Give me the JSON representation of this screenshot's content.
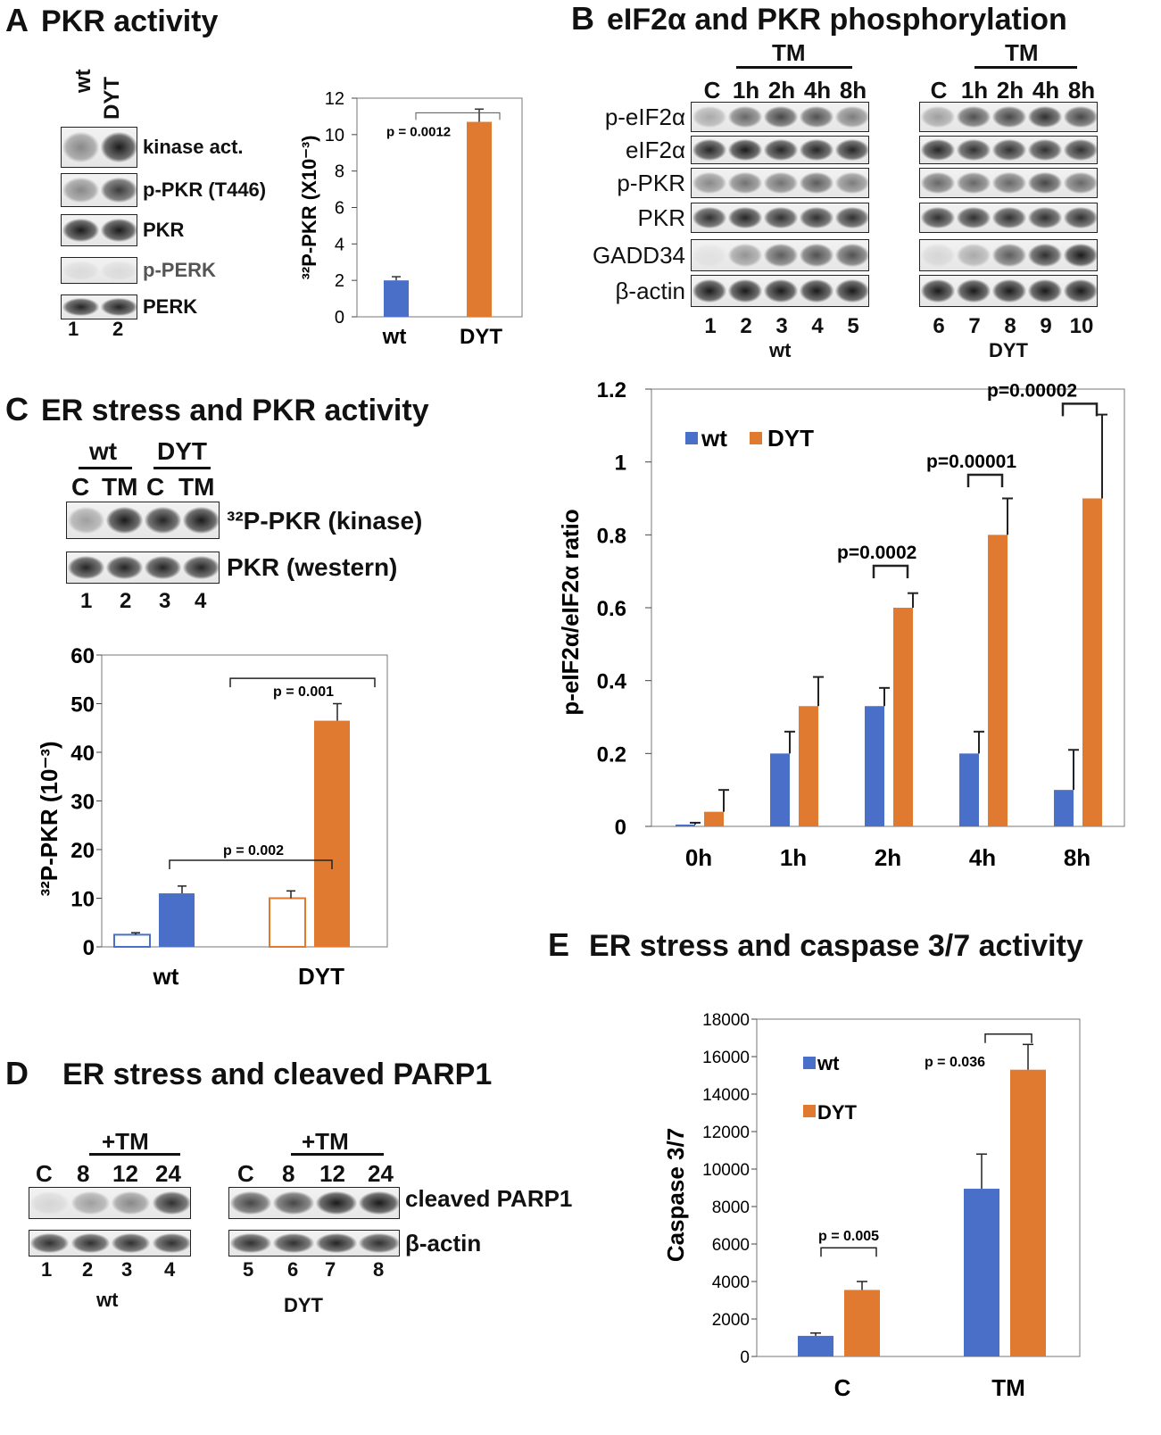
{
  "panelA": {
    "letter": "A",
    "title": "PKR activity",
    "lanes": [
      "wt",
      "DYT"
    ],
    "rows": [
      "kinase act.",
      "p-PKR (T446)",
      "PKR",
      "p-PERK",
      "PERK"
    ],
    "lane_numbers": [
      "1",
      "2"
    ],
    "band_intensity": [
      [
        0.45,
        0.95
      ],
      [
        0.45,
        0.8
      ],
      [
        0.95,
        0.95
      ],
      [
        0.08,
        0.08
      ],
      [
        0.9,
        0.9
      ]
    ]
  },
  "panelB": {
    "letter": "B",
    "title": "eIF2α and PKR phosphorylation",
    "treatment_label": "TM",
    "time_labels": [
      "C",
      "1h",
      "2h",
      "4h",
      "8h"
    ],
    "rows": [
      "p-eIF2α",
      "eIF2α",
      "p-PKR",
      "PKR",
      "GADD34",
      "β-actin"
    ],
    "wt": {
      "lane_numbers": [
        "1",
        "2",
        "3",
        "4",
        "5"
      ],
      "genotype": "wt",
      "band_intensity": [
        [
          0.3,
          0.6,
          0.75,
          0.7,
          0.5
        ],
        [
          0.9,
          0.95,
          0.9,
          0.9,
          0.9
        ],
        [
          0.45,
          0.55,
          0.55,
          0.65,
          0.5
        ],
        [
          0.85,
          0.9,
          0.85,
          0.85,
          0.85
        ],
        [
          0.05,
          0.4,
          0.65,
          0.7,
          0.7
        ],
        [
          0.95,
          0.95,
          0.95,
          0.95,
          0.95
        ]
      ]
    },
    "dyt": {
      "lane_numbers": [
        "6",
        "7",
        "8",
        "9",
        "10"
      ],
      "genotype": "DYT",
      "band_intensity": [
        [
          0.35,
          0.7,
          0.75,
          0.85,
          0.75
        ],
        [
          0.9,
          0.85,
          0.85,
          0.85,
          0.85
        ],
        [
          0.6,
          0.6,
          0.6,
          0.75,
          0.6
        ],
        [
          0.85,
          0.85,
          0.85,
          0.85,
          0.85
        ],
        [
          0.1,
          0.3,
          0.65,
          0.85,
          0.95
        ],
        [
          0.95,
          0.95,
          0.95,
          0.95,
          0.95
        ]
      ]
    }
  },
  "panelC": {
    "letter": "C",
    "title": "ER stress and PKR activity",
    "groups": [
      "wt",
      "DYT"
    ],
    "lane_labels": [
      "C",
      "TM",
      "C",
      "TM"
    ],
    "rows": [
      "³²P-PKR (kinase)",
      "PKR (western)"
    ],
    "lane_numbers": [
      "1",
      "2",
      "3",
      "4"
    ],
    "band_intensity": [
      [
        0.35,
        0.95,
        0.9,
        0.95
      ],
      [
        0.9,
        0.9,
        0.9,
        0.9
      ]
    ]
  },
  "panelD": {
    "letter": "D",
    "title": "ER stress and cleaved PARP1",
    "treatment_label": "+TM",
    "time_labels": [
      "C",
      "8",
      "12",
      "24"
    ],
    "rows": [
      "cleaved PARP1",
      "β-actin"
    ],
    "wt": {
      "lane_numbers": [
        "1",
        "2",
        "3",
        "4"
      ],
      "genotype": "wt",
      "band_intensity": [
        [
          0.1,
          0.35,
          0.45,
          0.85
        ],
        [
          0.85,
          0.85,
          0.85,
          0.85
        ]
      ]
    },
    "dyt": {
      "lane_numbers": [
        "5",
        "6",
        "7",
        "8"
      ],
      "genotype": "DYT",
      "band_intensity": [
        [
          0.75,
          0.75,
          0.95,
          0.95
        ],
        [
          0.85,
          0.85,
          0.9,
          0.85
        ]
      ]
    }
  },
  "panelE": {
    "letter": "E",
    "title": "ER stress and caspase 3/7 activity"
  },
  "colors": {
    "wt": "#4a6fc9",
    "dyt": "#e07a30"
  },
  "chart_data": [
    {
      "id": "A",
      "type": "bar",
      "categories": [
        "wt",
        "DYT"
      ],
      "values": [
        2.0,
        10.7
      ],
      "errors": [
        0.2,
        0.7
      ],
      "ylabel": "³²P-PKR (X10⁻³)",
      "ylim": [
        0,
        12
      ],
      "yticks": [
        "0",
        "2",
        "4",
        "6",
        "8",
        "10",
        "12"
      ],
      "annotations": [
        {
          "text": "p = 0.0012",
          "between": [
            0,
            1
          ]
        }
      ]
    },
    {
      "id": "B",
      "type": "bar",
      "categories": [
        "0h",
        "1h",
        "2h",
        "4h",
        "8h"
      ],
      "series": [
        {
          "name": "wt",
          "values": [
            0.005,
            0.2,
            0.33,
            0.2,
            0.1
          ],
          "errors": [
            0.005,
            0.06,
            0.05,
            0.06,
            0.11
          ]
        },
        {
          "name": "DYT",
          "values": [
            0.04,
            0.33,
            0.6,
            0.8,
            0.9
          ],
          "errors": [
            0.06,
            0.08,
            0.04,
            0.1,
            0.23
          ]
        }
      ],
      "ylabel": "p-eIF2α/eIF2α ratio",
      "ylim": [
        0,
        1.2
      ],
      "yticks": [
        "0",
        "0.2",
        "0.4",
        "0.6",
        "0.8",
        "1",
        "1.2"
      ],
      "legend": "top-left",
      "annotations": [
        {
          "text": "p=0.0002",
          "category": 2
        },
        {
          "text": "p=0.00001",
          "category": 3
        },
        {
          "text": "p=0.00002",
          "category": 4
        }
      ]
    },
    {
      "id": "C",
      "type": "bar",
      "categories": [
        "wt",
        "DYT"
      ],
      "series": [
        {
          "name": "C",
          "values": [
            2.5,
            10.0
          ],
          "errors": [
            0.4,
            1.5
          ],
          "fill": "hollow"
        },
        {
          "name": "TM",
          "values": [
            11.0,
            46.5
          ],
          "errors": [
            1.5,
            3.5
          ],
          "fill": "solid"
        }
      ],
      "ylabel": "³²P-PKR (10⁻³)",
      "ylim": [
        0,
        60
      ],
      "yticks": [
        "0",
        "10",
        "20",
        "30",
        "40",
        "50",
        "60"
      ],
      "annotations": [
        {
          "text": "p = 0.001",
          "between": [
            "wt-TM",
            "DYT-TM"
          ]
        },
        {
          "text": "p = 0.002",
          "between": [
            "wt-C",
            "DYT-C"
          ]
        }
      ]
    },
    {
      "id": "E",
      "type": "bar",
      "categories": [
        "C",
        "TM"
      ],
      "series": [
        {
          "name": "wt",
          "values": [
            1100,
            8950
          ],
          "errors": [
            150,
            1850
          ]
        },
        {
          "name": "DYT",
          "values": [
            3550,
            15300
          ],
          "errors": [
            450,
            1350
          ]
        }
      ],
      "ylabel": "Caspase 3/7",
      "ylim": [
        0,
        18000
      ],
      "yticks": [
        "0",
        "2000",
        "4000",
        "6000",
        "8000",
        "10000",
        "12000",
        "14000",
        "16000",
        "18000"
      ],
      "legend": "top-left",
      "annotations": [
        {
          "text": "p = 0.005",
          "category": 0
        },
        {
          "text": "p = 0.036",
          "category": 1
        }
      ]
    }
  ]
}
